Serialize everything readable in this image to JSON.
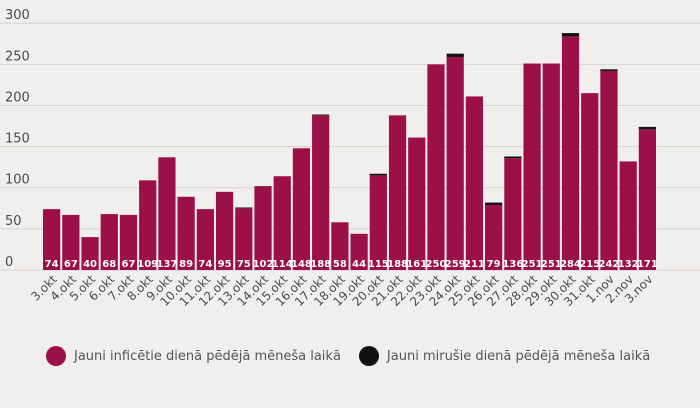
{
  "chart_data": {
    "type": "bar",
    "stacked": true,
    "categories": [
      "3.okt",
      "4.okt",
      "5.okt",
      "6.okt",
      "7.okt",
      "8.okt",
      "9.okt",
      "10.okt",
      "11.okt",
      "12.okt",
      "13.okt",
      "14.okt",
      "15.okt",
      "16.okt",
      "17.okt",
      "18.okt",
      "19.okt",
      "20.okt",
      "21.okt",
      "22.okt",
      "23.okt",
      "24.okt",
      "25.okt",
      "26.okt",
      "27.okt",
      "28.okt",
      "29.okt",
      "30.okt",
      "31.okt",
      "1.nov",
      "2.nov",
      "3.nov"
    ],
    "series": [
      {
        "name": "Jauni inficētie dienā pēdējā mēneša laikā",
        "color": "#9b1046",
        "values": [
          74,
          67,
          40,
          68,
          67,
          109,
          137,
          89,
          74,
          95,
          75,
          102,
          114,
          148,
          188,
          58,
          44,
          115,
          188,
          161,
          250,
          259,
          211,
          79,
          136,
          251,
          251,
          284,
          215,
          242,
          132,
          171
        ]
      },
      {
        "name": "Jauni mirušie dienā pēdējā mēneša laikā",
        "color": "#111111",
        "values": [
          0,
          0,
          0,
          0,
          0,
          0,
          0,
          0,
          0,
          0,
          1,
          0,
          0,
          0,
          1,
          0,
          0,
          2,
          0,
          0,
          0,
          4,
          0,
          3,
          2,
          0,
          0,
          4,
          0,
          2,
          0,
          3
        ]
      }
    ],
    "y_ticks": [
      0,
      50,
      100,
      150,
      200,
      250,
      300
    ],
    "ylim": [
      0,
      310
    ],
    "grid": true,
    "data_labels": "inside-bottom",
    "legend_position": "bottom-left"
  }
}
